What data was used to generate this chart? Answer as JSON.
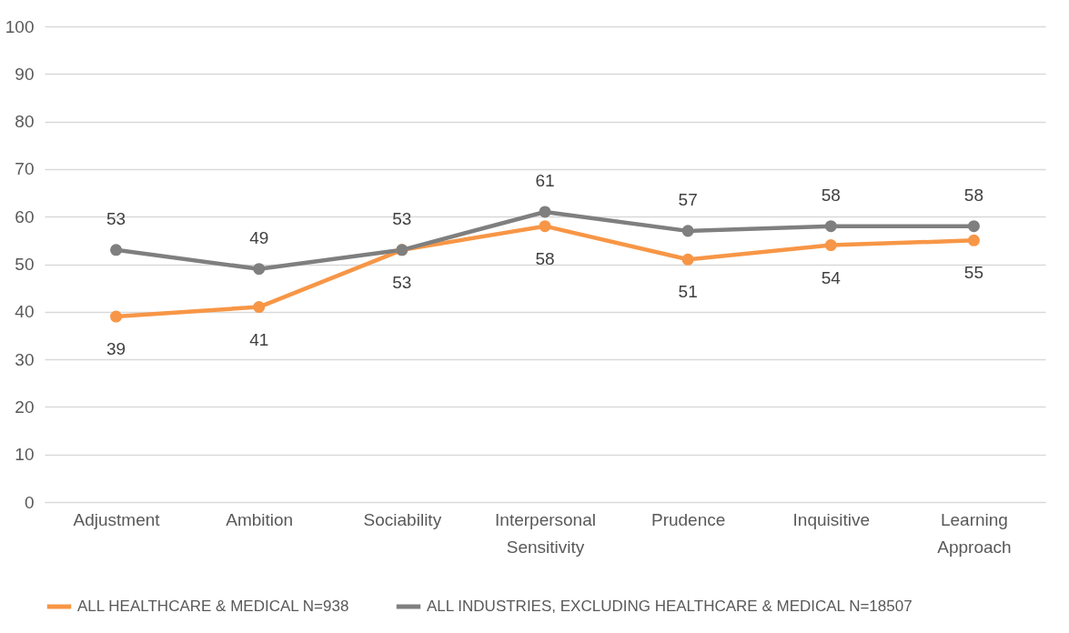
{
  "chart_data": {
    "type": "line",
    "categories": [
      "Adjustment",
      "Ambition",
      "Sociability",
      "Interpersonal Sensitivity",
      "Prudence",
      "Inquisitive",
      "Learning Approach"
    ],
    "series": [
      {
        "name": "ALL HEALTHCARE & MEDICAL N=938",
        "color": "#f79646",
        "values": [
          39,
          41,
          53,
          58,
          51,
          54,
          55
        ]
      },
      {
        "name": "ALL INDUSTRIES, EXCLUDING HEALTHCARE & MEDICAL N=18507",
        "color": "#7f7f7f",
        "values": [
          53,
          49,
          53,
          61,
          57,
          58,
          58
        ]
      }
    ],
    "ylim": [
      0,
      100
    ],
    "yticks": [
      0,
      10,
      20,
      30,
      40,
      50,
      60,
      70,
      80,
      90,
      100
    ],
    "grid": "y",
    "legend": "bottom",
    "marker": "circle",
    "data_labels": true
  }
}
